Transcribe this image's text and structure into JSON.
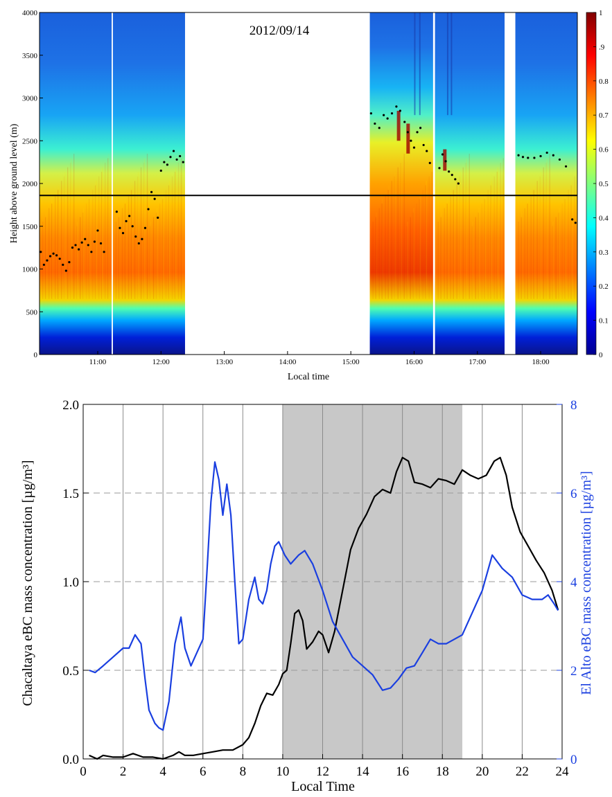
{
  "colors": {
    "chacaltaya_line": "#000000",
    "el_alto_line": "#1a3fe0",
    "shading": "#c8c8c8",
    "threshold_line": "#000000",
    "colormap": "jet"
  },
  "chart_data": [
    {
      "type": "heatmap",
      "title": "2012/09/14",
      "xlabel": "Local time",
      "ylabel": "Height above ground level (m)",
      "xlim": [
        10.08,
        18.58
      ],
      "ylim": [
        0,
        4000
      ],
      "x_ticks": [
        {
          "value": 11,
          "label": "11:00"
        },
        {
          "value": 12,
          "label": "12:00"
        },
        {
          "value": 13,
          "label": "13:00"
        },
        {
          "value": 14,
          "label": "14:00"
        },
        {
          "value": 15,
          "label": "15:00"
        },
        {
          "value": 16,
          "label": "16:00"
        },
        {
          "value": 17,
          "label": "17:00"
        },
        {
          "value": 18,
          "label": "18:00"
        }
      ],
      "y_ticks": [
        0,
        500,
        1000,
        1500,
        2000,
        2500,
        3000,
        3500,
        4000
      ],
      "colorbar": {
        "range": [
          0,
          1
        ],
        "ticks": [
          {
            "value": 0,
            "label": "0"
          },
          {
            "value": 0.1,
            "label": "0.1"
          },
          {
            "value": 0.2,
            "label": "0.2"
          },
          {
            "value": 0.3,
            "label": "0.3"
          },
          {
            "value": 0.4,
            "label": "0.4"
          },
          {
            "value": 0.5,
            "label": "0.5"
          },
          {
            "value": 0.6,
            "label": "0.6"
          },
          {
            "value": 0.7,
            "label": "0.7"
          },
          {
            "value": 0.8,
            "label": "0.8"
          },
          {
            "value": 0.9,
            "label": ".9"
          },
          {
            "value": 1,
            "label": "1"
          }
        ]
      },
      "data_segments": [
        {
          "start": 10.08,
          "end": 11.22
        },
        {
          "start": 11.24,
          "end": 12.38
        },
        {
          "start": 15.3,
          "end": 16.3
        },
        {
          "start": 16.33,
          "end": 17.43
        },
        {
          "start": 17.6,
          "end": 18.58
        }
      ],
      "horizontal_line_height": 1860,
      "layer_top_points": [
        [
          10.1,
          1200
        ],
        [
          10.15,
          1050
        ],
        [
          10.2,
          1100
        ],
        [
          10.25,
          1150
        ],
        [
          10.3,
          1180
        ],
        [
          10.35,
          1160
        ],
        [
          10.4,
          1120
        ],
        [
          10.45,
          1050
        ],
        [
          10.5,
          980
        ],
        [
          10.55,
          1080
        ],
        [
          10.6,
          1250
        ],
        [
          10.65,
          1280
        ],
        [
          10.7,
          1230
        ],
        [
          10.75,
          1310
        ],
        [
          10.8,
          1350
        ],
        [
          10.85,
          1280
        ],
        [
          10.9,
          1200
        ],
        [
          10.95,
          1320
        ],
        [
          11.0,
          1450
        ],
        [
          11.05,
          1300
        ],
        [
          11.1,
          1200
        ],
        [
          11.3,
          1670
        ],
        [
          11.35,
          1480
        ],
        [
          11.4,
          1420
        ],
        [
          11.45,
          1560
        ],
        [
          11.5,
          1620
        ],
        [
          11.55,
          1500
        ],
        [
          11.6,
          1380
        ],
        [
          11.65,
          1300
        ],
        [
          11.7,
          1350
        ],
        [
          11.75,
          1480
        ],
        [
          11.8,
          1700
        ],
        [
          11.85,
          1900
        ],
        [
          11.9,
          1820
        ],
        [
          11.95,
          1600
        ],
        [
          12.0,
          2150
        ],
        [
          12.05,
          2250
        ],
        [
          12.1,
          2220
        ],
        [
          12.15,
          2310
        ],
        [
          12.2,
          2380
        ],
        [
          12.25,
          2280
        ],
        [
          12.3,
          2320
        ],
        [
          12.35,
          2250
        ],
        [
          15.32,
          2820
        ],
        [
          15.38,
          2700
        ],
        [
          15.45,
          2650
        ],
        [
          15.52,
          2800
        ],
        [
          15.58,
          2760
        ],
        [
          15.65,
          2820
        ],
        [
          15.72,
          2900
        ],
        [
          15.78,
          2850
        ],
        [
          15.85,
          2720
        ],
        [
          15.9,
          2600
        ],
        [
          15.95,
          2500
        ],
        [
          16.0,
          2420
        ],
        [
          16.05,
          2600
        ],
        [
          16.1,
          2650
        ],
        [
          16.15,
          2450
        ],
        [
          16.2,
          2380
        ],
        [
          16.25,
          2240
        ],
        [
          16.4,
          2180
        ],
        [
          16.45,
          2340
        ],
        [
          16.5,
          2260
        ],
        [
          16.55,
          2140
        ],
        [
          16.6,
          2100
        ],
        [
          16.65,
          2050
        ],
        [
          16.7,
          2000
        ],
        [
          17.65,
          2330
        ],
        [
          17.72,
          2310
        ],
        [
          17.8,
          2300
        ],
        [
          17.9,
          2300
        ],
        [
          18.0,
          2320
        ],
        [
          18.1,
          2360
        ],
        [
          18.2,
          2330
        ],
        [
          18.3,
          2280
        ],
        [
          18.4,
          2200
        ],
        [
          18.5,
          1580
        ],
        [
          18.55,
          1540
        ]
      ]
    },
    {
      "type": "line",
      "xlabel": "Local Time",
      "ylabel": "Chacaltaya eBC mass concentration [µg/m³]",
      "y2label": "El Alto eBC mass concentration [µg/m³]",
      "xlim": [
        0,
        24
      ],
      "ylim": [
        0,
        2.0
      ],
      "y2lim": [
        0,
        8
      ],
      "x_ticks": [
        0,
        2,
        4,
        6,
        8,
        10,
        12,
        14,
        16,
        18,
        20,
        22,
        24
      ],
      "y_ticks": [
        "0.0",
        "0.5",
        "1.0",
        "1.5",
        "2.0"
      ],
      "y2_ticks": [
        "0",
        "2",
        "4",
        "6",
        "8"
      ],
      "shaded_interval": [
        10,
        19
      ],
      "series": [
        {
          "axis": "left",
          "x": [
            0.3,
            0.7,
            1.0,
            1.5,
            2.0,
            2.5,
            3.0,
            3.5,
            4.0,
            4.5,
            4.8,
            5.1,
            5.5,
            6.0,
            6.5,
            7.0,
            7.5,
            8.0,
            8.3,
            8.6,
            8.9,
            9.2,
            9.5,
            9.8,
            10.0,
            10.2,
            10.4,
            10.6,
            10.8,
            11.0,
            11.2,
            11.5,
            11.8,
            12.0,
            12.3,
            12.6,
            13.0,
            13.4,
            13.8,
            14.2,
            14.6,
            15.0,
            15.4,
            15.7,
            16.0,
            16.3,
            16.6,
            17.0,
            17.4,
            17.8,
            18.2,
            18.6,
            19.0,
            19.4,
            19.8,
            20.2,
            20.6,
            20.9,
            21.2,
            21.5,
            21.9,
            22.3,
            22.7,
            23.1,
            23.5,
            23.8
          ],
          "values": [
            0.02,
            0.0,
            0.02,
            0.01,
            0.01,
            0.03,
            0.01,
            0.01,
            0.0,
            0.02,
            0.04,
            0.02,
            0.02,
            0.03,
            0.04,
            0.05,
            0.05,
            0.08,
            0.12,
            0.2,
            0.3,
            0.37,
            0.36,
            0.42,
            0.48,
            0.5,
            0.65,
            0.82,
            0.84,
            0.78,
            0.62,
            0.66,
            0.72,
            0.7,
            0.6,
            0.72,
            0.95,
            1.18,
            1.3,
            1.38,
            1.48,
            1.52,
            1.5,
            1.62,
            1.7,
            1.68,
            1.56,
            1.55,
            1.53,
            1.58,
            1.57,
            1.55,
            1.63,
            1.6,
            1.58,
            1.6,
            1.68,
            1.7,
            1.6,
            1.42,
            1.28,
            1.2,
            1.12,
            1.05,
            0.95,
            0.84
          ]
        },
        {
          "axis": "right",
          "x": [
            0.3,
            0.6,
            1.0,
            1.5,
            2.0,
            2.3,
            2.6,
            2.9,
            3.1,
            3.3,
            3.6,
            3.8,
            4.0,
            4.3,
            4.6,
            4.9,
            5.1,
            5.4,
            5.7,
            6.0,
            6.2,
            6.4,
            6.6,
            6.8,
            7.0,
            7.2,
            7.4,
            7.6,
            7.8,
            8.0,
            8.3,
            8.6,
            8.8,
            9.0,
            9.2,
            9.4,
            9.6,
            9.8,
            10.1,
            10.4,
            10.8,
            11.1,
            11.5,
            12.0,
            12.5,
            13.0,
            13.5,
            14.0,
            14.5,
            15.0,
            15.4,
            15.8,
            16.2,
            16.6,
            17.0,
            17.4,
            17.8,
            18.2,
            18.6,
            19.0,
            19.5,
            20.0,
            20.5,
            21.0,
            21.5,
            22.0,
            22.5,
            23.0,
            23.3,
            23.6,
            23.8
          ],
          "values": [
            2.0,
            1.95,
            2.1,
            2.3,
            2.5,
            2.5,
            2.8,
            2.6,
            1.8,
            1.1,
            0.8,
            0.7,
            0.65,
            1.3,
            2.6,
            3.2,
            2.5,
            2.1,
            2.4,
            2.7,
            4.2,
            5.8,
            6.7,
            6.3,
            5.5,
            6.2,
            5.5,
            4.0,
            2.6,
            2.7,
            3.6,
            4.1,
            3.6,
            3.5,
            3.8,
            4.4,
            4.8,
            4.9,
            4.6,
            4.4,
            4.6,
            4.7,
            4.4,
            3.8,
            3.1,
            2.7,
            2.3,
            2.1,
            1.9,
            1.55,
            1.6,
            1.8,
            2.05,
            2.1,
            2.4,
            2.7,
            2.6,
            2.6,
            2.7,
            2.8,
            3.3,
            3.8,
            4.6,
            4.3,
            4.1,
            3.7,
            3.6,
            3.6,
            3.7,
            3.5,
            3.35
          ]
        }
      ]
    }
  ]
}
